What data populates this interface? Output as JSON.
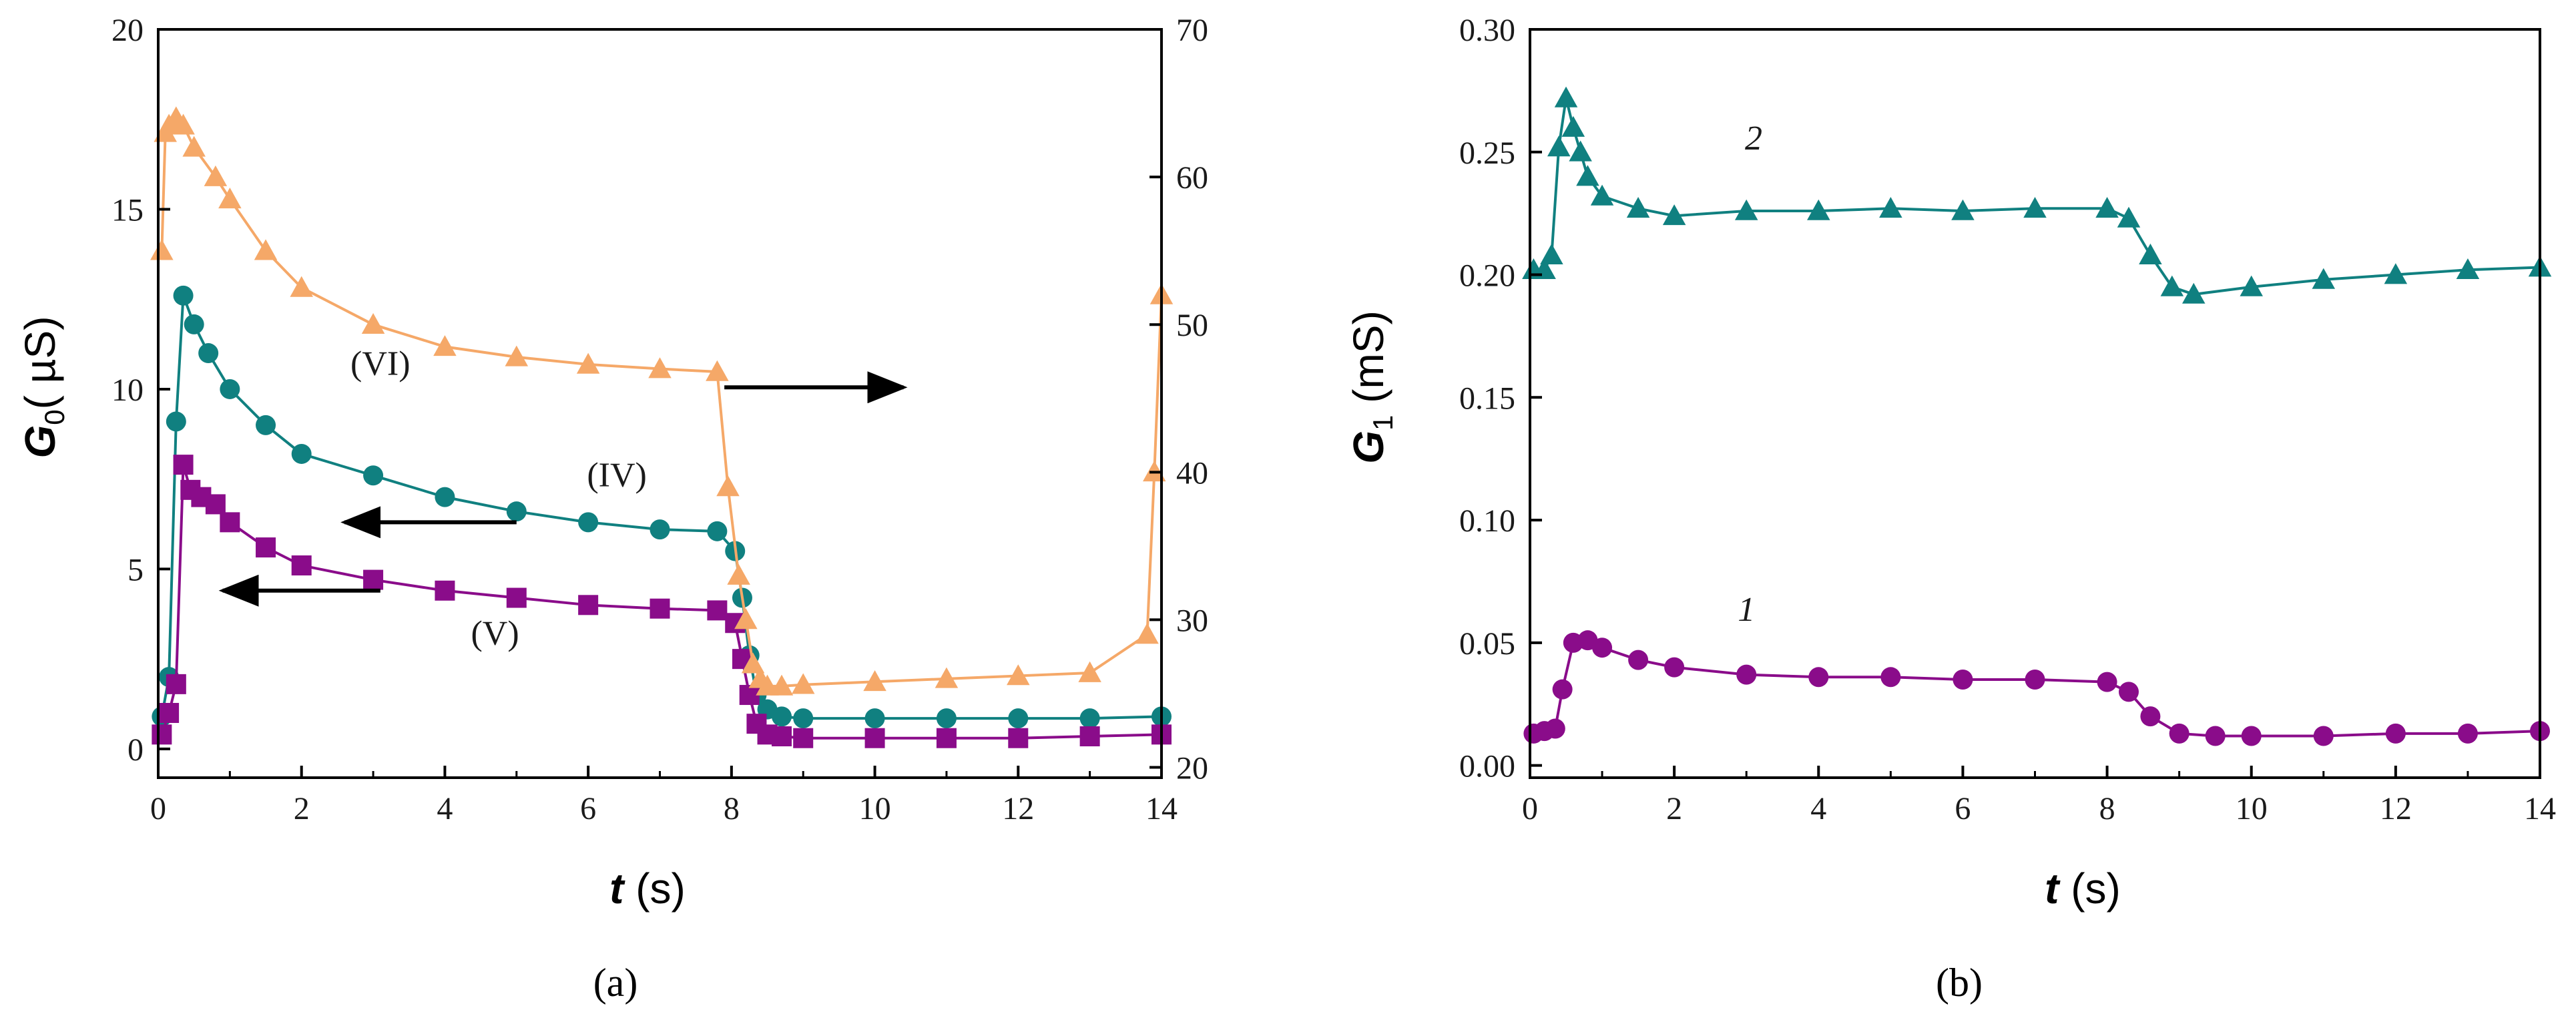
{
  "chart_data": [
    {
      "panel_label": "(a)",
      "type": "scatter",
      "xlabel": {
        "italic": "t",
        "normal": " (s)"
      },
      "ylabel": {
        "italic": "G",
        "sub": "0",
        "normal": "( µS)"
      },
      "xlim": [
        0,
        14
      ],
      "ylim": [
        -0.8,
        20
      ],
      "y2lim": [
        19.3,
        70
      ],
      "x_ticks": [
        "0",
        "2",
        "4",
        "6",
        "8",
        "10",
        "12",
        "14"
      ],
      "y_ticks": [
        "0",
        "5",
        "10",
        "15",
        "20"
      ],
      "y2_ticks": [
        "20",
        "30",
        "40",
        "50",
        "60",
        "70"
      ],
      "series": [
        {
          "name": "(IV)",
          "marker": "circle",
          "color": "#108080",
          "axis": "left",
          "x": [
            0.05,
            0.15,
            0.25,
            0.35,
            0.5,
            0.7,
            1.0,
            1.5,
            2.0,
            3.0,
            4.0,
            5.0,
            6.0,
            7.0,
            7.8,
            8.05,
            8.15,
            8.25,
            8.35,
            8.5,
            8.7,
            9.0,
            10.0,
            11.0,
            12.0,
            13.0,
            14.0
          ],
          "values": [
            0.9,
            2.0,
            9.1,
            12.6,
            11.8,
            11.0,
            10.0,
            9.0,
            8.2,
            7.6,
            7.0,
            6.6,
            6.3,
            6.1,
            6.05,
            5.5,
            4.2,
            2.6,
            1.5,
            1.1,
            0.9,
            0.85,
            0.85,
            0.85,
            0.85,
            0.85,
            0.9
          ]
        },
        {
          "name": "(V)",
          "marker": "square",
          "color": "#8a0c8a",
          "axis": "left",
          "x": [
            0.05,
            0.15,
            0.25,
            0.35,
            0.45,
            0.6,
            0.8,
            1.0,
            1.5,
            2.0,
            3.0,
            4.0,
            5.0,
            6.0,
            7.0,
            7.8,
            8.05,
            8.15,
            8.25,
            8.35,
            8.5,
            8.7,
            9.0,
            10.0,
            11.0,
            12.0,
            13.0,
            14.0
          ],
          "values": [
            0.4,
            1.0,
            1.8,
            7.9,
            7.2,
            7.0,
            6.8,
            6.3,
            5.6,
            5.1,
            4.7,
            4.4,
            4.2,
            4.0,
            3.9,
            3.85,
            3.5,
            2.5,
            1.5,
            0.7,
            0.4,
            0.35,
            0.3,
            0.3,
            0.3,
            0.3,
            0.35,
            0.4
          ]
        },
        {
          "name": "(VI)",
          "marker": "triangle",
          "color": "#f5a868",
          "axis": "right",
          "x": [
            0.05,
            0.1,
            0.15,
            0.25,
            0.35,
            0.5,
            0.8,
            1.0,
            1.5,
            2.0,
            3.0,
            4.0,
            5.0,
            6.0,
            7.0,
            7.8,
            7.95,
            8.1,
            8.2,
            8.3,
            8.4,
            8.5,
            8.7,
            9.0,
            10.0,
            11.0,
            12.0,
            13.0,
            13.8,
            13.9,
            14.0
          ],
          "values": [
            55.0,
            63.0,
            63.5,
            64.0,
            63.5,
            62.0,
            60.0,
            58.5,
            55.0,
            52.5,
            50.0,
            48.5,
            47.8,
            47.3,
            47.0,
            46.8,
            39.0,
            33.0,
            30.0,
            27.0,
            26.0,
            25.5,
            25.5,
            25.6,
            25.8,
            26.0,
            26.2,
            26.4,
            29.0,
            40.0,
            52.0
          ]
        }
      ],
      "annotations": [
        {
          "text": "(VI)",
          "x": 3.1,
          "y": 46.6,
          "axis": "right"
        },
        {
          "text": "(IV)",
          "x": 6.4,
          "y": 7.3,
          "axis": "left"
        },
        {
          "text": "(V)",
          "x": 4.7,
          "y": 2.9,
          "axis": "left"
        }
      ],
      "arrows": [
        {
          "from": [
            7.9,
            10.05
          ],
          "to": [
            10.4,
            10.05
          ],
          "direction": "right"
        },
        {
          "from": [
            5.0,
            6.3
          ],
          "to": [
            2.6,
            6.3
          ],
          "direction": "left"
        },
        {
          "from": [
            3.1,
            4.4
          ],
          "to": [
            0.9,
            4.4
          ],
          "direction": "left"
        }
      ]
    },
    {
      "panel_label": "(b)",
      "type": "scatter",
      "xlabel": {
        "italic": "t",
        "normal": " (s)"
      },
      "ylabel": {
        "italic": "G",
        "sub": "1",
        "normal": " (mS)"
      },
      "xlim": [
        0,
        14
      ],
      "ylim": [
        -0.005,
        0.3
      ],
      "x_ticks": [
        "0",
        "2",
        "4",
        "6",
        "8",
        "10",
        "12",
        "14"
      ],
      "y_ticks": [
        "0.00",
        "0.05",
        "0.10",
        "0.15",
        "0.20",
        "0.25",
        "0.30"
      ],
      "series": [
        {
          "name": "1",
          "marker": "circle",
          "color": "#8a0c8a",
          "x": [
            0.05,
            0.2,
            0.35,
            0.45,
            0.6,
            0.8,
            1.0,
            1.5,
            2.0,
            3.0,
            4.0,
            5.0,
            6.0,
            7.0,
            8.0,
            8.3,
            8.6,
            9.0,
            9.5,
            10.0,
            11.0,
            12.0,
            13.0,
            14.0
          ],
          "values": [
            0.013,
            0.014,
            0.015,
            0.031,
            0.05,
            0.051,
            0.048,
            0.043,
            0.04,
            0.037,
            0.036,
            0.036,
            0.035,
            0.035,
            0.034,
            0.03,
            0.02,
            0.013,
            0.012,
            0.012,
            0.012,
            0.013,
            0.013,
            0.014
          ]
        },
        {
          "name": "2",
          "marker": "triangle",
          "color": "#108080",
          "x": [
            0.05,
            0.2,
            0.3,
            0.4,
            0.5,
            0.6,
            0.7,
            0.8,
            1.0,
            1.5,
            2.0,
            3.0,
            4.0,
            5.0,
            6.0,
            7.0,
            8.0,
            8.3,
            8.6,
            8.9,
            9.2,
            10.0,
            11.0,
            12.0,
            13.0,
            14.0
          ],
          "values": [
            0.202,
            0.202,
            0.208,
            0.252,
            0.272,
            0.26,
            0.25,
            0.24,
            0.232,
            0.227,
            0.224,
            0.226,
            0.226,
            0.227,
            0.226,
            0.227,
            0.227,
            0.223,
            0.208,
            0.195,
            0.192,
            0.195,
            0.198,
            0.2,
            0.202,
            0.203
          ]
        }
      ],
      "annotations": [
        {
          "text": "2",
          "x": 3.1,
          "y": 0.251
        },
        {
          "text": "1",
          "x": 3.0,
          "y": 0.059
        }
      ]
    }
  ]
}
